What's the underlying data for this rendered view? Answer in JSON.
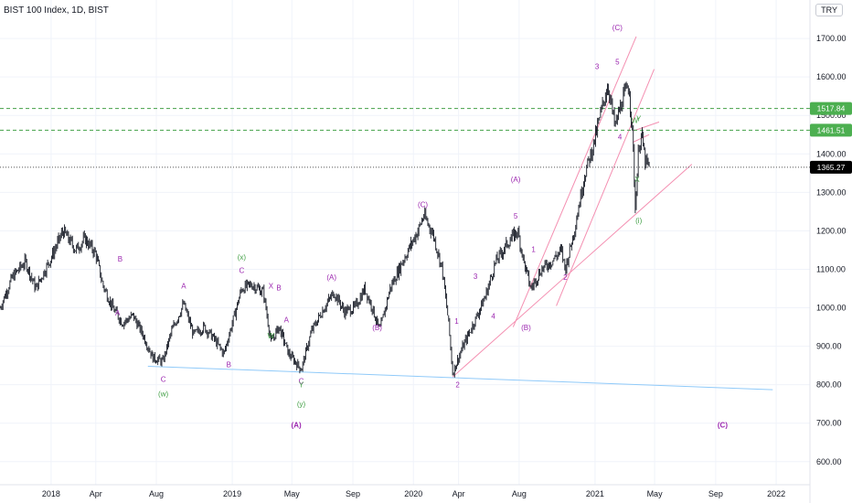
{
  "header": {
    "title": "BIST 100 Index, 1D, BIST",
    "currency": "TRY"
  },
  "colors": {
    "candle": "#131722",
    "wave_purple": "#9c27b0",
    "wave_green": "#43a047",
    "channel": "#f48fb1",
    "support": "#90caf9",
    "level_dash": "#43a047",
    "price_tag": "#000000",
    "level_tag": "#4caf50"
  },
  "chart_data": {
    "type": "candlestick",
    "y_axis": {
      "ticks": [
        "600.00",
        "700.00",
        "800.00",
        "900.00",
        "1000.00",
        "1100.00",
        "1200.00",
        "1300.00",
        "1400.00",
        "1500.00",
        "1600.00",
        "1700.00"
      ],
      "tick_values": [
        600,
        700,
        800,
        900,
        1000,
        1100,
        1200,
        1300,
        1400,
        1500,
        1600,
        1700
      ],
      "range": [
        540,
        1800
      ]
    },
    "x_axis": {
      "ticks": [
        "2018",
        "Apr",
        "Aug",
        "2019",
        "May",
        "Sep",
        "2020",
        "Apr",
        "Aug",
        "2021",
        "May",
        "Sep",
        "2022"
      ],
      "tick_dates": [
        "2018-01-01",
        "2018-04-01",
        "2018-08-01",
        "2019-01-01",
        "2019-05-01",
        "2019-09-01",
        "2020-01-01",
        "2020-04-01",
        "2020-08-01",
        "2021-01-01",
        "2021-05-01",
        "2021-09-01",
        "2022-01-01"
      ],
      "range": [
        "2017-09-20",
        "2022-03-10"
      ]
    },
    "price_path": [
      [
        "2017-09-20",
        1000
      ],
      [
        "2017-10-15",
        1080
      ],
      [
        "2017-11-10",
        1120
      ],
      [
        "2017-12-01",
        1050
      ],
      [
        "2018-01-01",
        1130
      ],
      [
        "2018-01-25",
        1200
      ],
      [
        "2018-02-20",
        1150
      ],
      [
        "2018-03-10",
        1180
      ],
      [
        "2018-04-01",
        1140
      ],
      [
        "2018-04-15",
        1060
      ],
      [
        "2018-05-05",
        1000
      ],
      [
        "2018-05-25",
        960
      ],
      [
        "2018-06-15",
        980
      ],
      [
        "2018-07-05",
        930
      ],
      [
        "2018-07-25",
        870
      ],
      [
        "2018-08-14",
        860
      ],
      [
        "2018-09-01",
        940
      ],
      [
        "2018-09-25",
        1010
      ],
      [
        "2018-10-15",
        930
      ],
      [
        "2018-11-05",
        950
      ],
      [
        "2018-11-25",
        920
      ],
      [
        "2018-12-15",
        880
      ],
      [
        "2019-01-01",
        960
      ],
      [
        "2019-01-20",
        1050
      ],
      [
        "2019-02-10",
        1060
      ],
      [
        "2019-03-05",
        1040
      ],
      [
        "2019-03-20",
        910
      ],
      [
        "2019-04-05",
        950
      ],
      [
        "2019-04-25",
        880
      ],
      [
        "2019-05-20",
        840
      ],
      [
        "2019-06-10",
        940
      ],
      [
        "2019-07-05",
        1000
      ],
      [
        "2019-07-25",
        1040
      ],
      [
        "2019-08-15",
        990
      ],
      [
        "2019-09-05",
        1000
      ],
      [
        "2019-09-25",
        1050
      ],
      [
        "2019-10-10",
        1000
      ],
      [
        "2019-10-25",
        940
      ],
      [
        "2019-11-15",
        1050
      ],
      [
        "2019-12-10",
        1120
      ],
      [
        "2020-01-10",
        1200
      ],
      [
        "2020-01-22",
        1240
      ],
      [
        "2020-02-10",
        1190
      ],
      [
        "2020-02-28",
        1100
      ],
      [
        "2020-03-12",
        960
      ],
      [
        "2020-03-20",
        830
      ],
      [
        "2020-04-10",
        900
      ],
      [
        "2020-05-05",
        970
      ],
      [
        "2020-05-25",
        1030
      ],
      [
        "2020-06-15",
        1120
      ],
      [
        "2020-07-10",
        1170
      ],
      [
        "2020-07-29",
        1200
      ],
      [
        "2020-08-12",
        1110
      ],
      [
        "2020-08-25",
        1050
      ],
      [
        "2020-09-15",
        1100
      ],
      [
        "2020-10-05",
        1120
      ],
      [
        "2020-10-25",
        1150
      ],
      [
        "2020-11-02",
        1100
      ],
      [
        "2020-11-20",
        1200
      ],
      [
        "2020-12-10",
        1340
      ],
      [
        "2020-12-30",
        1430
      ],
      [
        "2021-01-15",
        1520
      ],
      [
        "2021-01-27",
        1580
      ],
      [
        "2021-02-10",
        1470
      ],
      [
        "2021-02-25",
        1540
      ],
      [
        "2021-03-10",
        1580
      ],
      [
        "2021-03-18",
        1440
      ],
      [
        "2021-03-23",
        1260
      ],
      [
        "2021-03-30",
        1420
      ],
      [
        "2021-04-05",
        1450
      ],
      [
        "2021-04-12",
        1380
      ],
      [
        "2021-04-20",
        1365
      ]
    ],
    "levels": [
      {
        "label": "1517.84",
        "value": 1517.84,
        "style": "dashed-green"
      },
      {
        "label": "1461.51",
        "value": 1461.51,
        "style": "dashed-green"
      },
      {
        "label": "1365.27",
        "value": 1365.27,
        "style": "last-price"
      }
    ],
    "trendlines": [
      {
        "kind": "support",
        "from": [
          "2018-07-15",
          848
        ],
        "to": [
          "2021-12-25",
          787
        ]
      },
      {
        "kind": "channel",
        "from": [
          "2020-03-20",
          820
        ],
        "to": [
          "2021-07-15",
          1373
        ]
      },
      {
        "kind": "channel",
        "from": [
          "2020-10-15",
          1005
        ],
        "to": [
          "2021-04-30",
          1620
        ]
      },
      {
        "kind": "channel",
        "from": [
          "2020-07-20",
          950
        ],
        "to": [
          "2021-03-25",
          1705
        ]
      },
      {
        "kind": "channel",
        "from": [
          "2021-03-20",
          1460
        ],
        "to": [
          "2021-05-10",
          1483
        ]
      },
      {
        "kind": "channel",
        "from": [
          "2021-03-18",
          1430
        ],
        "to": [
          "2021-04-20",
          1450
        ]
      }
    ],
    "annotations": [
      {
        "text": "A",
        "at": [
          "2018-05-15",
          980
        ],
        "color": "purple"
      },
      {
        "text": "B",
        "at": [
          "2018-05-20",
          1120
        ],
        "color": "purple"
      },
      {
        "text": "C",
        "at": [
          "2018-08-15",
          808
        ],
        "color": "purple"
      },
      {
        "text": "(w)",
        "at": [
          "2018-08-15",
          770
        ],
        "color": "green",
        "big": true
      },
      {
        "text": "A",
        "at": [
          "2018-09-25",
          1050
        ],
        "color": "purple"
      },
      {
        "text": "B",
        "at": [
          "2018-12-25",
          845
        ],
        "color": "purple"
      },
      {
        "text": "C",
        "at": [
          "2019-01-20",
          1090
        ],
        "color": "purple"
      },
      {
        "text": "(x)",
        "at": [
          "2019-01-20",
          1125
        ],
        "color": "green",
        "big": true
      },
      {
        "text": "X",
        "at": [
          "2019-03-20",
          1050
        ],
        "color": "purple"
      },
      {
        "text": "B",
        "at": [
          "2019-04-05",
          1045
        ],
        "color": "purple"
      },
      {
        "text": "A",
        "at": [
          "2019-04-20",
          962
        ],
        "color": "purple"
      },
      {
        "text": "W",
        "at": [
          "2019-03-20",
          920
        ],
        "color": "green"
      },
      {
        "text": "C",
        "at": [
          "2019-05-20",
          803
        ],
        "color": "purple"
      },
      {
        "text": "Y",
        "at": [
          "2019-05-20",
          793
        ],
        "color": "green"
      },
      {
        "text": "(y)",
        "at": [
          "2019-05-20",
          743
        ],
        "color": "green",
        "big": true
      },
      {
        "text": "(A)",
        "at": [
          "2019-05-10",
          688
        ],
        "color": "purple",
        "huge": true
      },
      {
        "text": "(A)",
        "at": [
          "2019-07-20",
          1072
        ],
        "color": "purple"
      },
      {
        "text": "(B)",
        "at": [
          "2019-10-20",
          942
        ],
        "color": "purple"
      },
      {
        "text": "(C)",
        "at": [
          "2020-01-20",
          1262
        ],
        "color": "purple"
      },
      {
        "text": "1",
        "at": [
          "2020-03-28",
          958
        ],
        "color": "purple"
      },
      {
        "text": "2",
        "at": [
          "2020-03-30",
          793
        ],
        "color": "purple"
      },
      {
        "text": "3",
        "at": [
          "2020-05-05",
          1075
        ],
        "color": "purple"
      },
      {
        "text": "4",
        "at": [
          "2020-06-10",
          972
        ],
        "color": "purple"
      },
      {
        "text": "5",
        "at": [
          "2020-07-25",
          1232
        ],
        "color": "purple"
      },
      {
        "text": "(A)",
        "at": [
          "2020-07-25",
          1327
        ],
        "color": "purple"
      },
      {
        "text": "(B)",
        "at": [
          "2020-08-15",
          942
        ],
        "color": "purple"
      },
      {
        "text": "1",
        "at": [
          "2020-08-30",
          1145
        ],
        "color": "purple"
      },
      {
        "text": "2",
        "at": [
          "2020-11-02",
          1072
        ],
        "color": "purple"
      },
      {
        "text": "3",
        "at": [
          "2021-01-05",
          1620
        ],
        "color": "purple"
      },
      {
        "text": "(C)",
        "at": [
          "2021-02-15",
          1722
        ],
        "color": "purple"
      },
      {
        "text": "5",
        "at": [
          "2021-02-15",
          1632
        ],
        "color": "purple"
      },
      {
        "text": "4",
        "at": [
          "2021-02-20",
          1437
        ],
        "color": "purple"
      },
      {
        "text": "W",
        "at": [
          "2021-03-22",
          1480
        ],
        "color": "green"
      },
      {
        "text": "Y",
        "at": [
          "2021-03-30",
          1485
        ],
        "color": "green"
      },
      {
        "text": "X",
        "at": [
          "2021-03-27",
          1327
        ],
        "color": "green"
      },
      {
        "text": "(i)",
        "at": [
          "2021-03-30",
          1220
        ],
        "color": "green",
        "big": true
      },
      {
        "text": "(C)",
        "at": [
          "2021-09-15",
          688
        ],
        "color": "purple",
        "huge": true
      }
    ]
  }
}
